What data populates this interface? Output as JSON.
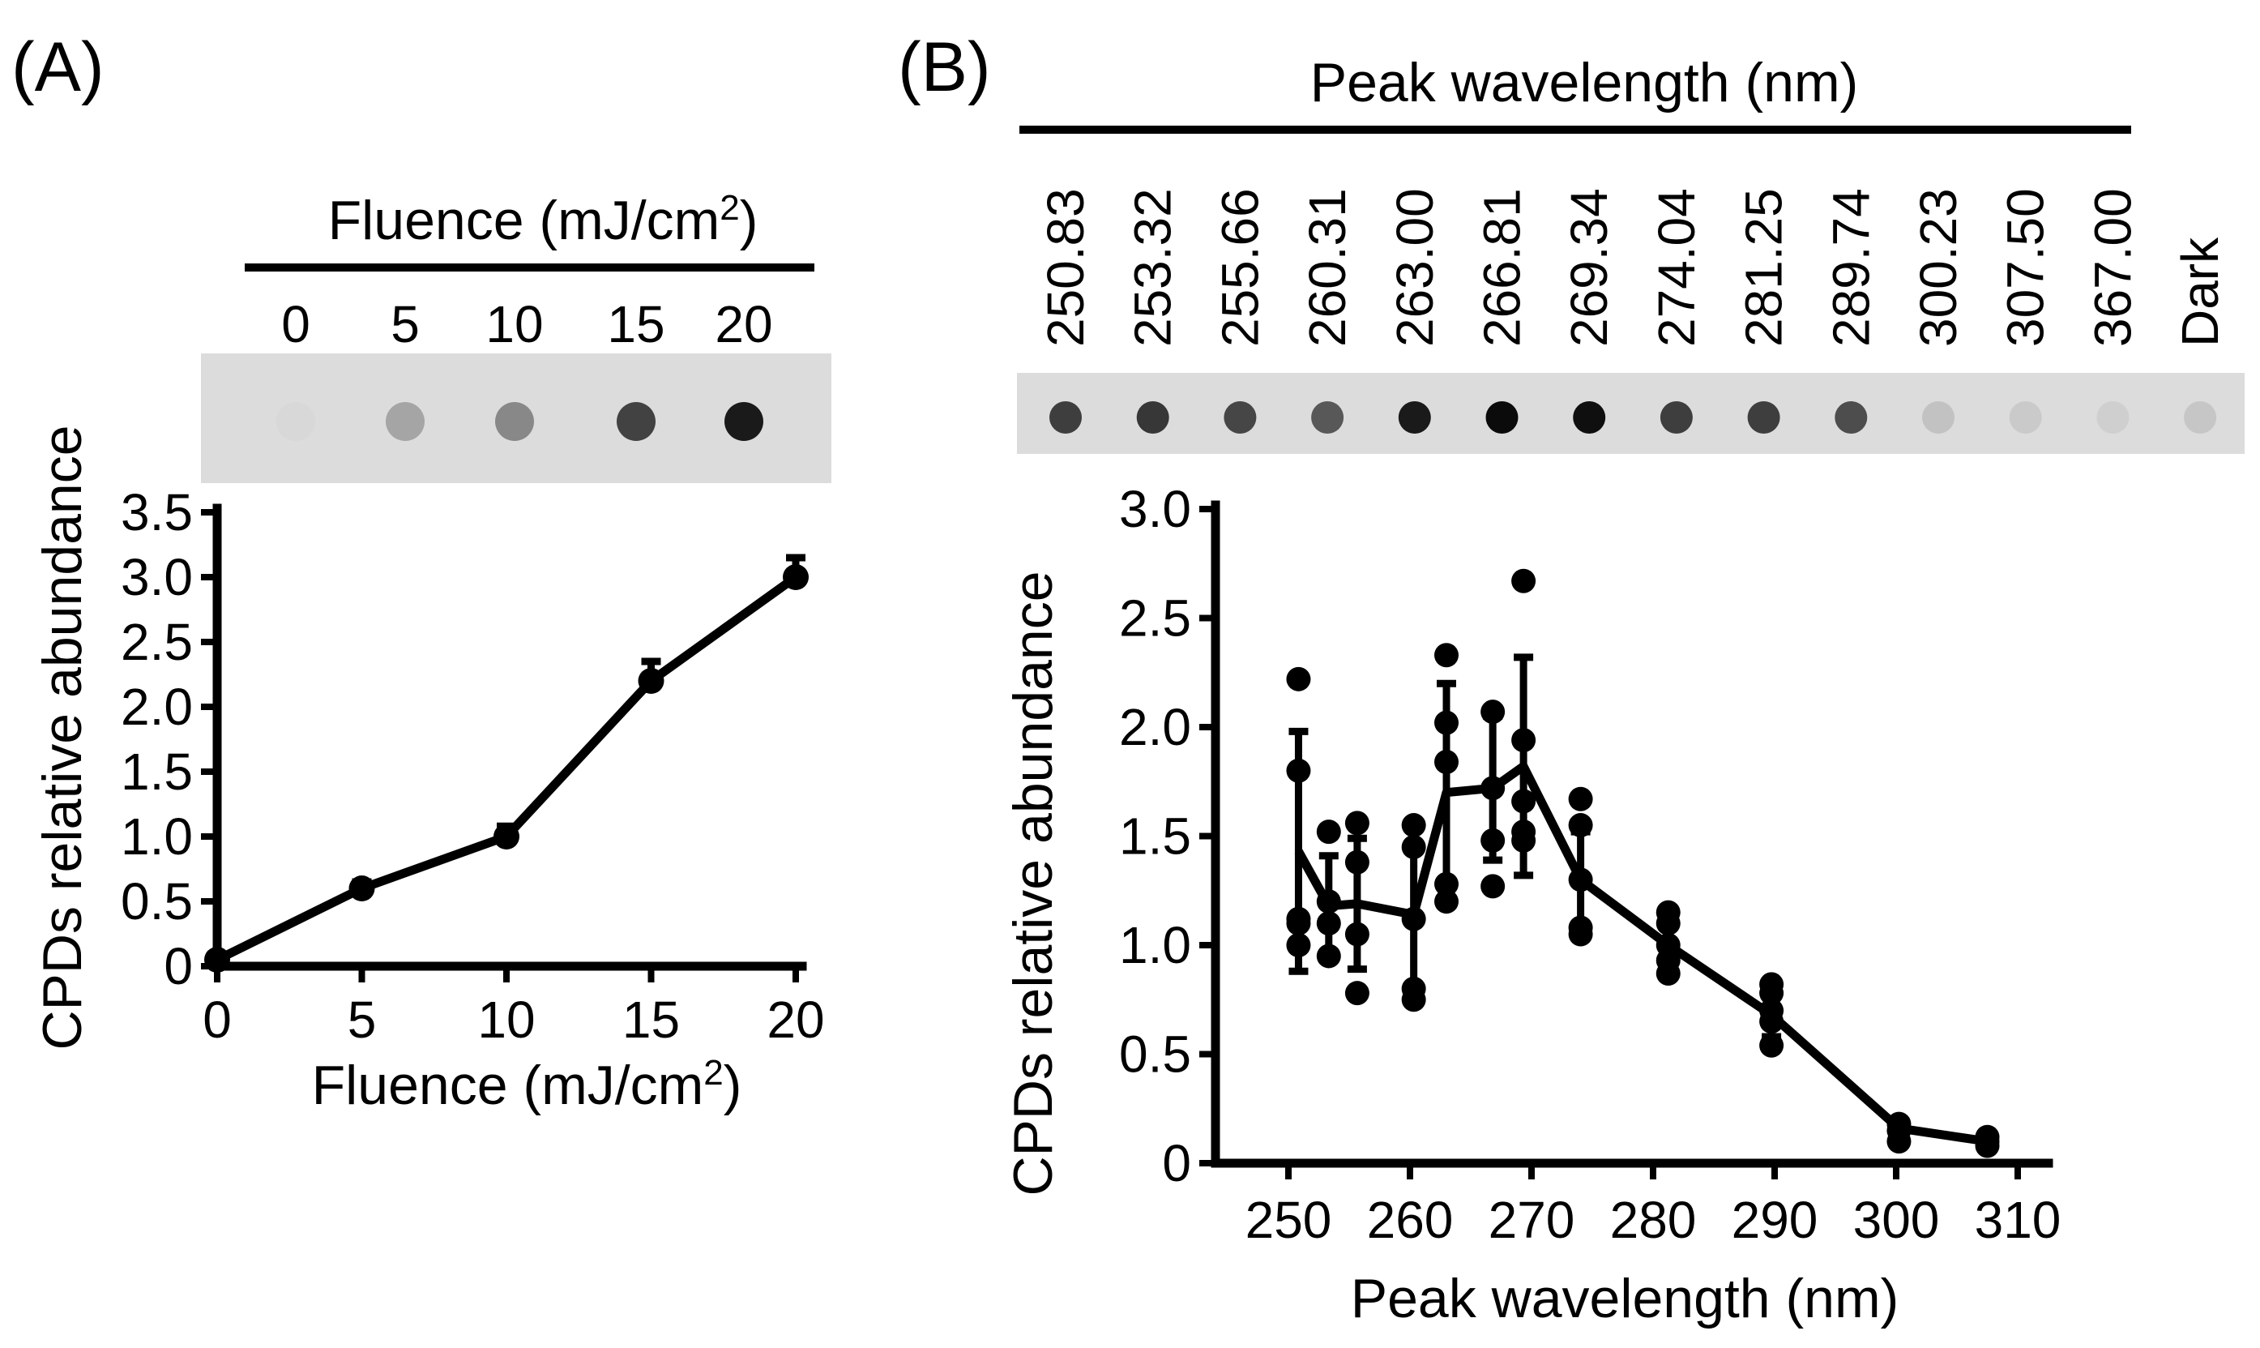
{
  "panel_a": {
    "label": "(A)",
    "blot_header": "Fluence (mJ/cm",
    "blot_header_sup": "2",
    "blot_header_end": ")",
    "blot_lanes": [
      "0",
      "5",
      "10",
      "15",
      "20"
    ],
    "blot_darkness": [
      0.02,
      0.25,
      0.38,
      0.7,
      0.88
    ]
  },
  "panel_b": {
    "label": "(B)",
    "blot_header": "Peak wavelength (nm)",
    "blot_lanes": [
      "250.83",
      "253.32",
      "255.66",
      "260.31",
      "263.00",
      "266.81",
      "269.34",
      "274.04",
      "281.25",
      "289.74",
      "300.23",
      "307.50",
      "367.00",
      "Dark"
    ],
    "blot_darkness": [
      0.72,
      0.75,
      0.68,
      0.6,
      0.88,
      0.95,
      0.93,
      0.72,
      0.72,
      0.65,
      0.12,
      0.08,
      0.06,
      0.1
    ]
  },
  "chart_data": [
    {
      "type": "line",
      "panel": "A",
      "title": "",
      "xlabel": "Fluence (mJ/cm",
      "xlabel_sup": "2",
      "xlabel_end": ")",
      "ylabel": "CPDs relative abundance",
      "x": [
        0,
        5,
        10,
        15,
        20
      ],
      "y": [
        0.05,
        0.6,
        1.0,
        2.2,
        3.0
      ],
      "error_upper": [
        0.0,
        0.05,
        0.08,
        0.15,
        0.15
      ],
      "xlim": [
        0,
        20
      ],
      "ylim": [
        0,
        3.5
      ],
      "xticks": [
        "0",
        "5",
        "10",
        "15",
        "20"
      ],
      "xtick_values": [
        0,
        5,
        10,
        15,
        20
      ],
      "yticks": [
        "0",
        "0.5",
        "1.0",
        "1.5",
        "2.0",
        "2.5",
        "3.0",
        "3.5"
      ],
      "ytick_values": [
        0,
        0.5,
        1.0,
        1.5,
        2.0,
        2.5,
        3.0,
        3.5
      ],
      "grid": false
    },
    {
      "type": "line",
      "panel": "B",
      "title": "",
      "xlabel": "Peak wavelength (nm)",
      "ylabel": "CPDs relative abundance",
      "x": [
        250.83,
        253.32,
        255.66,
        260.31,
        263.0,
        266.81,
        269.34,
        274.04,
        281.25,
        289.74,
        300.23,
        307.5
      ],
      "y": [
        1.43,
        1.18,
        1.19,
        1.14,
        1.7,
        1.72,
        1.82,
        1.3,
        1.0,
        0.68,
        0.16,
        0.1
      ],
      "error_upper": [
        0.55,
        0.23,
        0.3,
        0.4,
        0.5,
        0.33,
        0.5,
        0.22,
        0.12,
        0.1,
        0.03,
        0.02
      ],
      "error_lower": [
        0.55,
        0.23,
        0.3,
        0.4,
        0.5,
        0.33,
        0.5,
        0.22,
        0.12,
        0.1,
        0.03,
        0.02
      ],
      "replicates": [
        [
          2.22,
          1.8,
          1.1,
          1.0,
          1.12
        ],
        [
          1.52,
          1.2,
          1.1,
          0.95
        ],
        [
          1.56,
          1.38,
          1.05,
          0.78
        ],
        [
          1.55,
          1.45,
          1.12,
          0.8,
          0.75
        ],
        [
          2.33,
          2.02,
          1.84,
          1.28,
          1.2
        ],
        [
          2.07,
          1.72,
          1.48,
          1.27
        ],
        [
          2.67,
          1.94,
          1.66,
          1.52,
          1.48
        ],
        [
          1.67,
          1.55,
          1.3,
          1.05,
          1.08
        ],
        [
          1.15,
          1.1,
          1.0,
          0.93,
          0.87
        ],
        [
          0.82,
          0.78,
          0.7,
          0.65,
          0.54
        ],
        [
          0.18,
          0.15,
          0.1
        ],
        [
          0.12,
          0.1,
          0.08
        ]
      ],
      "xlim": [
        244,
        312
      ],
      "ylim": [
        0,
        3.0
      ],
      "xticks": [
        "250",
        "260",
        "270",
        "280",
        "290",
        "300",
        "310"
      ],
      "xtick_values": [
        250,
        260,
        270,
        280,
        290,
        300,
        310
      ],
      "yticks": [
        "0",
        "0.5",
        "1.0",
        "1.5",
        "2.0",
        "2.5",
        "3.0"
      ],
      "ytick_values": [
        0,
        0.5,
        1.0,
        1.5,
        2.0,
        2.5,
        3.0
      ],
      "grid": false
    }
  ]
}
